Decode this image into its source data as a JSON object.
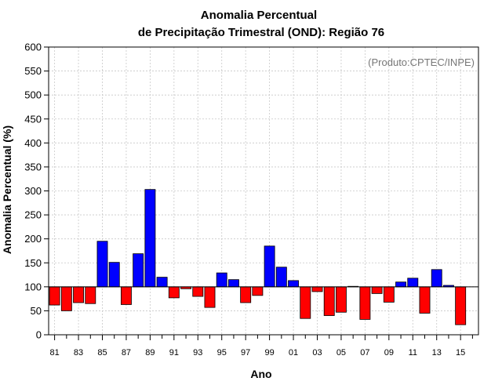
{
  "chart_data": {
    "type": "bar",
    "title_line1": "Anomalia Percentual",
    "title_line2": "de Precipitação Trimestral (OND): Região 76",
    "credit": "(Produto:CPTEC/INPE)",
    "xlabel": "Ano",
    "ylabel": "Anomalia Percentual (%)",
    "ylim": [
      0,
      600
    ],
    "yticks": [
      0,
      50,
      100,
      150,
      200,
      250,
      300,
      350,
      400,
      450,
      500,
      550,
      600
    ],
    "baseline": 100,
    "grid": true,
    "categories": [
      "81",
      "82",
      "83",
      "84",
      "85",
      "86",
      "87",
      "88",
      "89",
      "90",
      "91",
      "92",
      "93",
      "94",
      "95",
      "96",
      "97",
      "98",
      "99",
      "00",
      "01",
      "02",
      "03",
      "04",
      "05",
      "06",
      "07",
      "08",
      "09",
      "10",
      "11",
      "12",
      "13",
      "14",
      "15",
      "16"
    ],
    "xtick_labels": [
      "81",
      "83",
      "85",
      "87",
      "89",
      "91",
      "93",
      "95",
      "97",
      "99",
      "01",
      "03",
      "05",
      "07",
      "09",
      "11",
      "13",
      "15"
    ],
    "values": [
      62,
      50,
      67,
      65,
      195,
      151,
      63,
      169,
      303,
      120,
      77,
      96,
      80,
      57,
      129,
      115,
      67,
      82,
      185,
      141,
      113,
      34,
      90,
      40,
      47,
      101,
      32,
      86,
      68,
      110,
      118,
      45,
      136,
      103,
      21,
      100
    ],
    "colors": {
      "above": "#0000ff",
      "below": "#ff0000",
      "grid": "#c8c8c8"
    }
  }
}
